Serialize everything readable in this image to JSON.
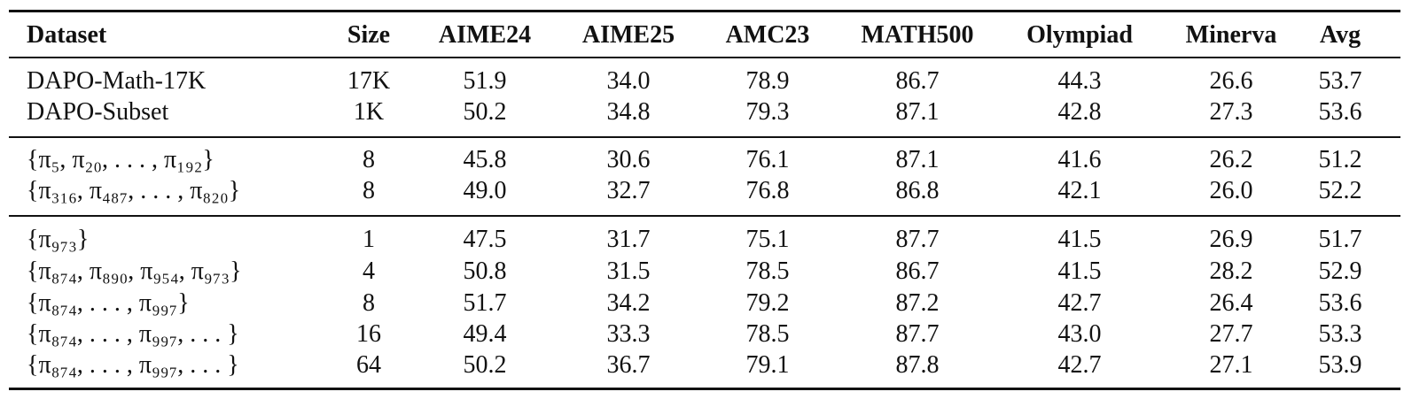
{
  "table": {
    "header": [
      "Dataset",
      "Size",
      "AIME24",
      "AIME25",
      "AMC23",
      "MATH500",
      "Olympiad",
      "Minerva",
      "Avg"
    ],
    "rows": [
      [
        "DAPO-Math-17K",
        "17K",
        "51.9",
        "34.0",
        "78.9",
        "86.7",
        "44.3",
        "26.6",
        "53.7"
      ],
      [
        "DAPO-Subset",
        "1K",
        "50.2",
        "34.8",
        "79.3",
        "87.1",
        "42.8",
        "27.3",
        "53.6"
      ],
      [
        "{π₅, π₂₀, . . . , π₁₉₂}",
        "8",
        "45.8",
        "30.6",
        "76.1",
        "87.1",
        "41.6",
        "26.2",
        "51.2"
      ],
      [
        "{π₃₁₆, π₄₈₇, . . . , π₈₂₀}",
        "8",
        "49.0",
        "32.7",
        "76.8",
        "86.8",
        "42.1",
        "26.0",
        "52.2"
      ],
      [
        "{π₉₇₃}",
        "1",
        "47.5",
        "31.7",
        "75.1",
        "87.7",
        "41.5",
        "26.9",
        "51.7"
      ],
      [
        "{π₈₇₄, π₈₉₀, π₉₅₄, π₉₇₃}",
        "4",
        "50.8",
        "31.5",
        "78.5",
        "86.7",
        "41.5",
        "28.2",
        "52.9"
      ],
      [
        "{π₈₇₄, . . . , π₉₉₇}",
        "8",
        "51.7",
        "34.2",
        "79.2",
        "87.2",
        "42.7",
        "26.4",
        "53.6"
      ],
      [
        "{π₈₇₄, . . . , π₉₉₇, . . . }",
        "16",
        "49.4",
        "33.3",
        "78.5",
        "87.7",
        "43.0",
        "27.7",
        "53.3"
      ],
      [
        "{π₈₇₄, . . . , π₉₉₇, . . . }",
        "64",
        "50.2",
        "36.7",
        "79.1",
        "87.8",
        "42.7",
        "27.1",
        "53.9"
      ]
    ]
  }
}
